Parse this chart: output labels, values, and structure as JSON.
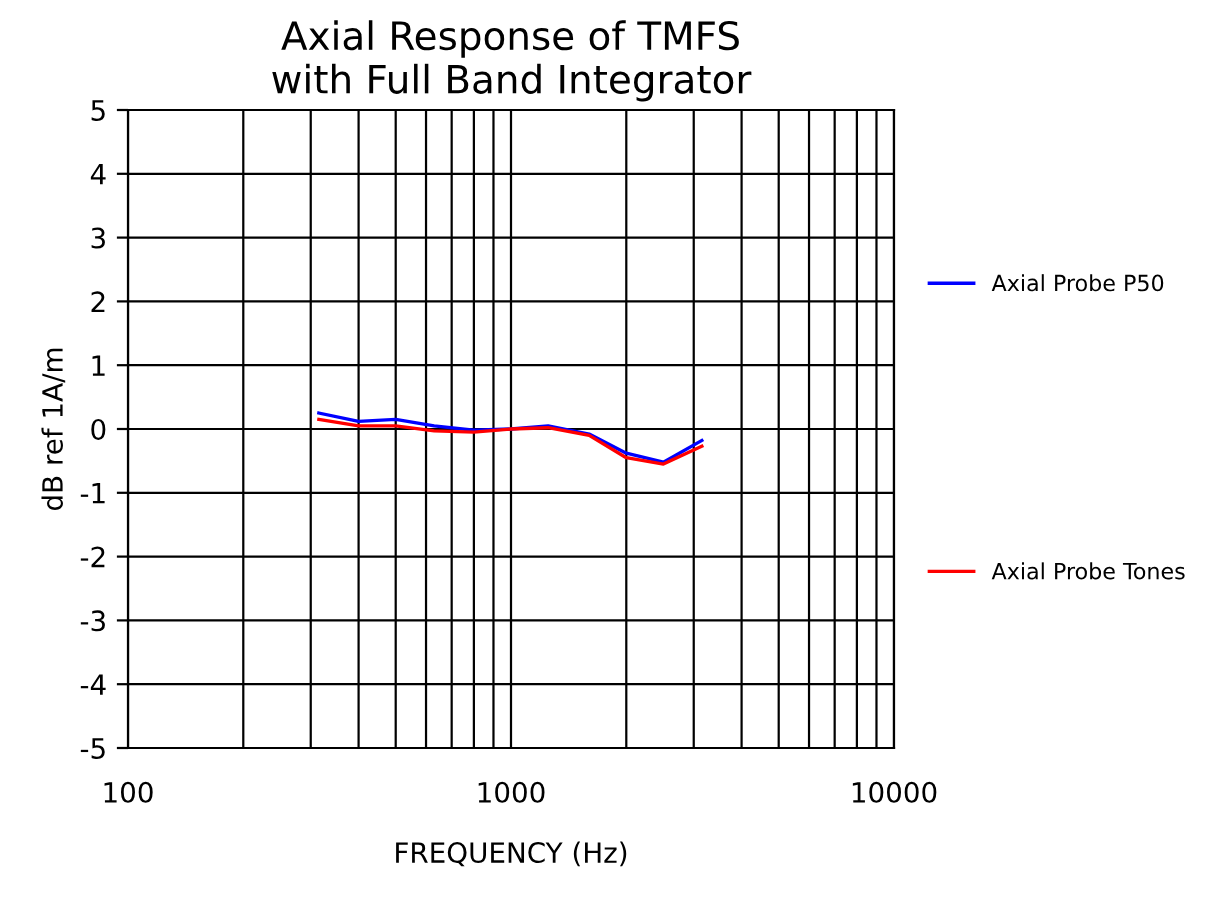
{
  "chart_data": {
    "type": "line",
    "title": "Axial Response of TMFS\nwith Full Band Integrator",
    "xlabel": "FREQUENCY (Hz)",
    "ylabel": "dB ref 1A/m",
    "log": "x",
    "x": [
      315,
      400,
      500,
      630,
      800,
      1000,
      1250,
      1600,
      2000,
      2500,
      3150
    ],
    "series": [
      {
        "name": "Axial Probe P50",
        "color": "#0000ff",
        "values": [
          0.25,
          0.12,
          0.15,
          0.05,
          -0.02,
          0,
          0.05,
          -0.08,
          -0.38,
          -0.52,
          -0.18
        ]
      },
      {
        "name": "Axial Probe Tones",
        "color": "#ff0000",
        "values": [
          0.15,
          0.05,
          0.05,
          -0.03,
          -0.05,
          0,
          0.02,
          -0.1,
          -0.45,
          -0.55,
          -0.27
        ]
      }
    ],
    "xlim": [
      100,
      10000
    ],
    "xticks": [
      100,
      1000,
      10000
    ],
    "ylim": [
      -5,
      5
    ],
    "yticks": [
      -5,
      -4,
      -3,
      -2,
      -1,
      0,
      1,
      2,
      3,
      4,
      5
    ],
    "grid": true,
    "legend": "right",
    "marker": "none",
    "line_style": "solid"
  }
}
